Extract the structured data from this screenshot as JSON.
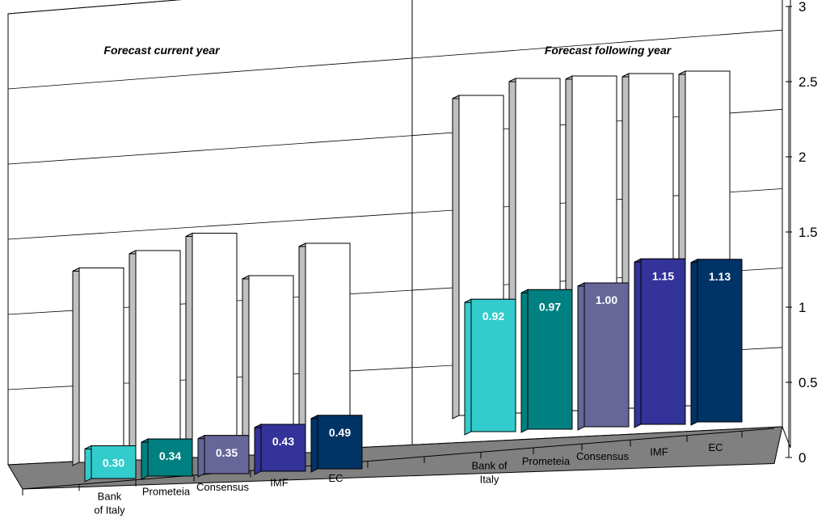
{
  "chart_data": {
    "type": "bar",
    "ylim": [
      0,
      3
    ],
    "yticks": [
      "0",
      "0.5",
      "1",
      "1.5",
      "2",
      "2.5",
      "3"
    ],
    "grid": true,
    "panels": [
      {
        "title": "Forecast current year",
        "categories": [
          "Bank of Italy",
          "Prometeia",
          "Consensus",
          "IMF",
          "EC"
        ],
        "back_values": [
          1.3,
          1.4,
          1.5,
          1.2,
          1.4
        ],
        "values": [
          0.3,
          0.34,
          0.35,
          0.43,
          0.49
        ],
        "labels": [
          "0.30",
          "0.34",
          "0.35",
          "0.43",
          "0.49"
        ]
      },
      {
        "title": "Forecast following year",
        "categories": [
          "Bank of Italy",
          "Prometeia",
          "Consensus",
          "IMF",
          "EC"
        ],
        "back_values": [
          2.2,
          2.3,
          2.3,
          2.3,
          2.3
        ],
        "values": [
          0.92,
          0.97,
          1.0,
          1.15,
          1.13
        ],
        "labels": [
          "0.92",
          "0.97",
          "1.00",
          "1.15",
          "1.13"
        ]
      }
    ],
    "colors": {
      "front": [
        "#33cccc",
        "#008080",
        "#666699",
        "#333399",
        "#003366"
      ],
      "back_face": "#ffffff",
      "back_side": "#c0c0c0",
      "floor": "#808080"
    }
  }
}
